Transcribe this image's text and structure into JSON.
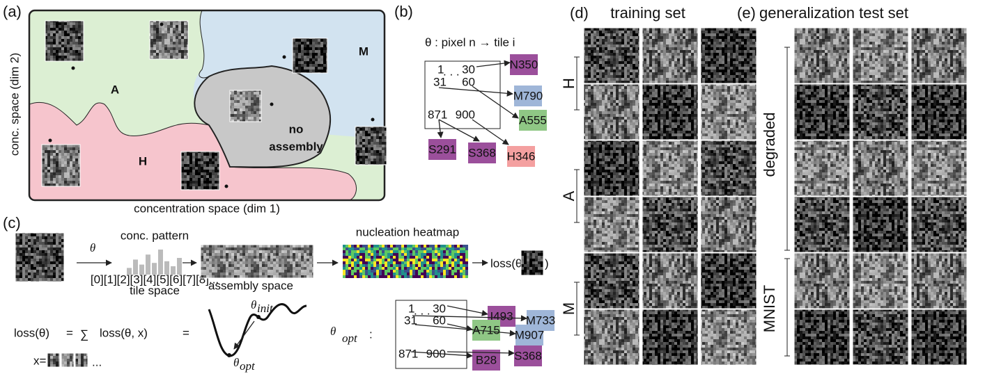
{
  "panel_a": {
    "label": "(a)",
    "y_axis": "conc. space (dim 2)",
    "x_axis": "concentration space (dim 1)",
    "regions": [
      "A",
      "M",
      "H"
    ],
    "no_assembly": [
      "no",
      "assembly"
    ]
  },
  "panel_b": {
    "label": "(b)",
    "map_title": "θ : pixel n → tile i",
    "pixels": [
      1,
      30,
      31,
      60,
      871,
      900
    ],
    "ellipsis": ". . .",
    "tiles": [
      {
        "name": "N350",
        "color": "#9b4f9b"
      },
      {
        "name": "M790",
        "color": "#9fb6d8"
      },
      {
        "name": "A555",
        "color": "#8fc785"
      },
      {
        "name": "S291",
        "color": "#9b4f9b"
      },
      {
        "name": "S368",
        "color": "#9b4f9b"
      },
      {
        "name": "H346",
        "color": "#f4a0a0"
      }
    ]
  },
  "panel_c": {
    "label": "(c)",
    "theta": "θ",
    "conc_pattern": "conc. pattern",
    "tile_axis": "[0][1][2][3][4][5][6][7][8]...",
    "tile_space": "tile space",
    "assembly_space": "assembly space",
    "heatmap": "nucleation heatmap",
    "loss_open": "loss(θ,",
    "loss_close": ")",
    "eq_lhs": "loss(θ)",
    "equals": "=",
    "sum": "∑",
    "eq_term": "loss(θ, x)",
    "x_eq": "x=",
    "ellipsis": "...",
    "theta_init": [
      "θ",
      "init"
    ],
    "theta_opt": [
      "θ",
      "opt"
    ],
    "theta_opt_map": [
      "θ",
      "opt",
      ":"
    ],
    "pixels": [
      1,
      30,
      31,
      60,
      871,
      900
    ],
    "dots": ". . .",
    "tiles": [
      {
        "name": "I493",
        "color": "#9b4f9b"
      },
      {
        "name": "M733",
        "color": "#9fb6d8"
      },
      {
        "name": "A715",
        "color": "#8fc785"
      },
      {
        "name": "M907",
        "color": "#9fb6d8"
      },
      {
        "name": "B28",
        "color": "#9b4f9b"
      },
      {
        "name": "S368",
        "color": "#9b4f9b"
      }
    ]
  },
  "panel_d": {
    "label": "(d)",
    "title": "training set",
    "groups": [
      "H",
      "A",
      "M"
    ]
  },
  "panel_e": {
    "label": "(e)",
    "title": "generalization test set",
    "groups": [
      "degraded",
      "MNIST"
    ]
  }
}
